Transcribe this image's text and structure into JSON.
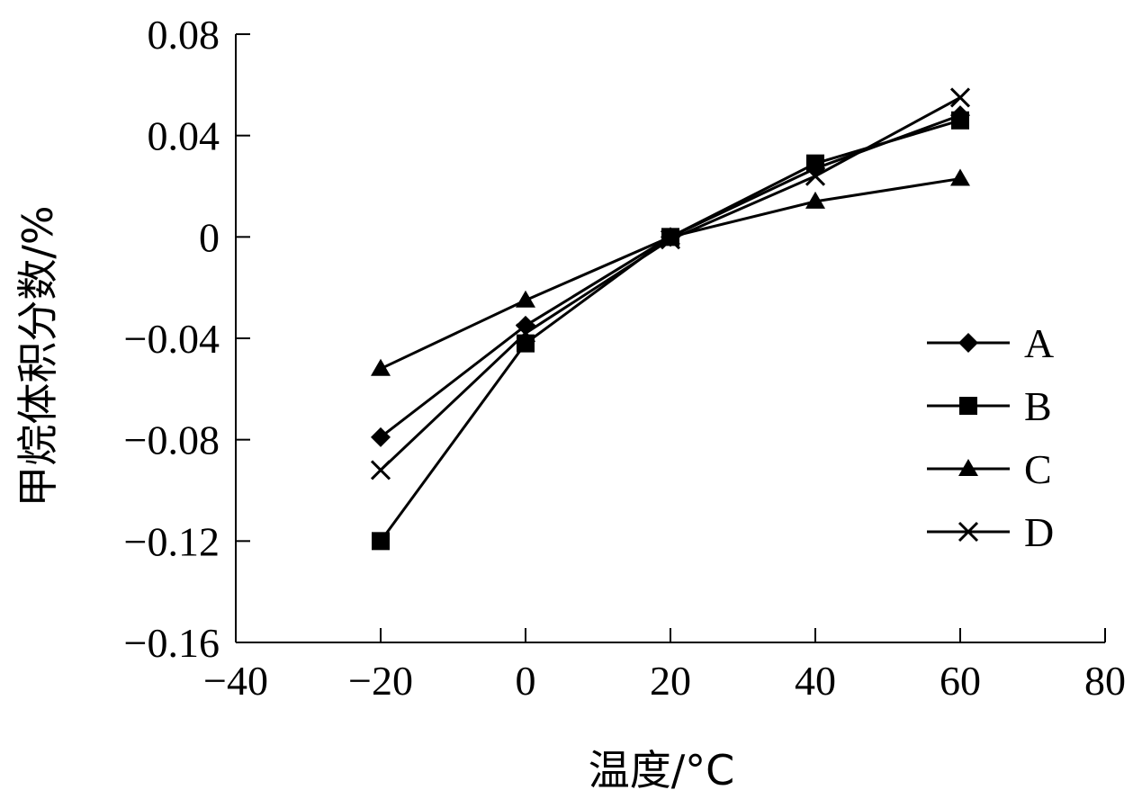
{
  "chart_data": {
    "type": "line",
    "xlabel": "温度/°C",
    "ylabel": "甲烷体积分数/%",
    "xlim": [
      -40,
      80
    ],
    "ylim": [
      -0.16,
      0.08
    ],
    "x_ticks": [
      -40,
      -20,
      0,
      20,
      40,
      60,
      80
    ],
    "y_ticks": [
      0.08,
      0.04,
      0,
      -0.04,
      -0.08,
      -0.12,
      -0.16
    ],
    "x_tick_labels": [
      "−40",
      "−20",
      "0",
      "20",
      "40",
      "60",
      "80"
    ],
    "y_tick_labels": [
      "0.08",
      "0.04",
      "0",
      "−0.04",
      "−0.08",
      "−0.12",
      "−0.16"
    ],
    "grid": false,
    "legend_position": "right",
    "x": [
      -20,
      0,
      20,
      40,
      60
    ],
    "series": [
      {
        "name": "A",
        "marker": "diamond",
        "values": [
          -0.079,
          -0.035,
          0.0,
          0.027,
          0.048
        ]
      },
      {
        "name": "B",
        "marker": "square",
        "values": [
          -0.12,
          -0.042,
          0.0,
          0.029,
          0.046
        ]
      },
      {
        "name": "C",
        "marker": "triangle",
        "values": [
          -0.052,
          -0.025,
          0.0,
          0.014,
          0.023
        ]
      },
      {
        "name": "D",
        "marker": "cross",
        "values": [
          -0.092,
          -0.038,
          -0.001,
          0.024,
          0.055
        ]
      }
    ]
  }
}
